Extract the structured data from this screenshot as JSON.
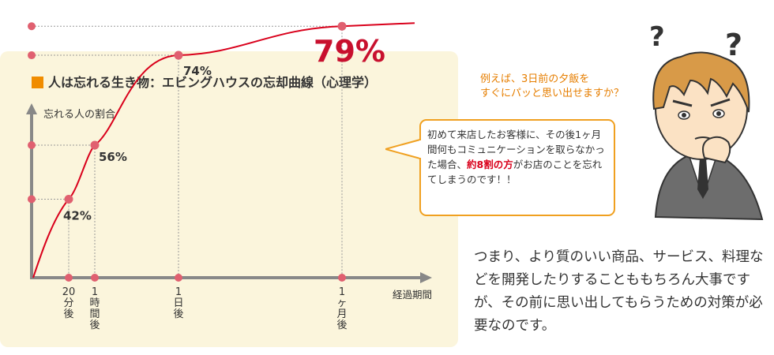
{
  "chart_data": {
    "type": "line",
    "title": "人は忘れる生き物：エビングハウスの忘却曲線（心理学）",
    "ylabel": "忘れる人の割合",
    "xlabel": "経過期間",
    "x": [
      "20分後",
      "1時間後",
      "1日後",
      "1ヶ月後"
    ],
    "values": [
      42,
      56,
      74,
      79
    ],
    "data_labels": [
      "42%",
      "56%",
      "74%",
      "79%"
    ],
    "highlight_label": "79%",
    "colors": {
      "line": "#d9001b",
      "dot": "#e06070",
      "highlight": "#c8102e",
      "title_square": "#f08c00",
      "background": "#fbf5dc"
    }
  },
  "callout": {
    "text_before": "初めて来店したお客様に、その後1ヶ月間何もコミュニケーションを取らなかった場合、",
    "highlight": "約8割の方",
    "text_after": "がお店のことを忘れてしまうのです！！"
  },
  "question": {
    "line1": "例えば、3日前の夕飯を",
    "line2": "すぐにパッと思い出せますか？"
  },
  "character": {
    "marks": [
      "?",
      "?"
    ]
  },
  "body_text": "つまり、より質のいい商品、サービス、料理などを開発したりすることももちろん大事ですが、その前に思い出してもらうための対策が必要なのです。"
}
